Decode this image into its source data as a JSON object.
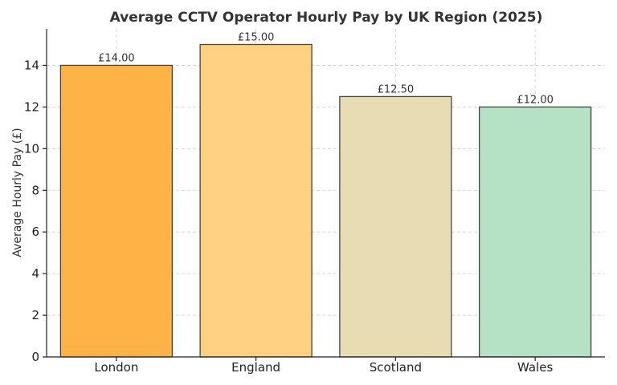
{
  "chart_data": {
    "type": "bar",
    "title": "Average CCTV Operator Hourly Pay by UK Region (2025)",
    "xlabel": "",
    "ylabel": "Average Hourly Pay (£)",
    "categories": [
      "London",
      "England",
      "Scotland",
      "Wales"
    ],
    "values": [
      14.0,
      15.0,
      12.5,
      12.0
    ],
    "data_labels": [
      "£14.00",
      "£15.00",
      "£12.50",
      "£12.00"
    ],
    "colors": [
      "#ffb347",
      "#fdd17f",
      "#e8dcb2",
      "#b5e2c4"
    ],
    "ylim": [
      0,
      15.75
    ],
    "yticks": [
      0,
      2,
      4,
      6,
      8,
      10,
      12,
      14
    ],
    "grid": true,
    "legend": "none"
  }
}
